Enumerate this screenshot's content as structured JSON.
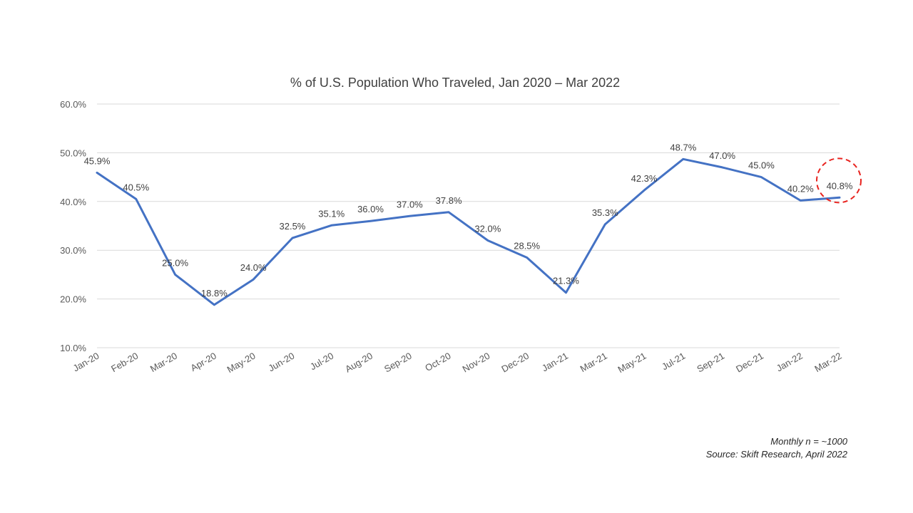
{
  "chart_data": {
    "type": "line",
    "title": "% of U.S. Population Who Traveled, Jan 2020 – Mar 2022",
    "categories": [
      "Jan-20",
      "Feb-20",
      "Mar-20",
      "Apr-20",
      "May-20",
      "Jun-20",
      "Jul-20",
      "Aug-20",
      "Sep-20",
      "Oct-20",
      "Nov-20",
      "Dec-20",
      "Jan-21",
      "Mar-21",
      "May-21",
      "Jul-21",
      "Sep-21",
      "Dec-21",
      "Jan-22",
      "Mar-22"
    ],
    "series": [
      {
        "values": [
          45.9,
          40.5,
          25.0,
          18.8,
          24.0,
          32.5,
          35.1,
          36.0,
          37.0,
          37.8,
          32.0,
          28.5,
          21.3,
          35.3,
          42.3,
          48.7,
          47.0,
          45.0,
          40.2,
          40.8
        ],
        "color": "#4472c4"
      }
    ],
    "data_labels": [
      "45.9%",
      "40.5%",
      "25.0%",
      "18.8%",
      "24.0%",
      "32.5%",
      "35.1%",
      "36.0%",
      "37.0%",
      "37.8%",
      "32.0%",
      "28.5%",
      "21.3%",
      "35.3%",
      "42.3%",
      "48.7%",
      "47.0%",
      "45.0%",
      "40.2%",
      "40.8%"
    ],
    "y_ticks": [
      "10.0%",
      "20.0%",
      "30.0%",
      "40.0%",
      "50.0%",
      "60.0%"
    ],
    "ylim": [
      10,
      60
    ],
    "grid": true,
    "legend": false,
    "highlight": {
      "index": 19,
      "shape": "dashed-circle",
      "color": "#e8231f"
    }
  },
  "footnotes": {
    "line1": "Monthly n = ~1000",
    "line2": "Source: Skift Research, April 2022"
  }
}
